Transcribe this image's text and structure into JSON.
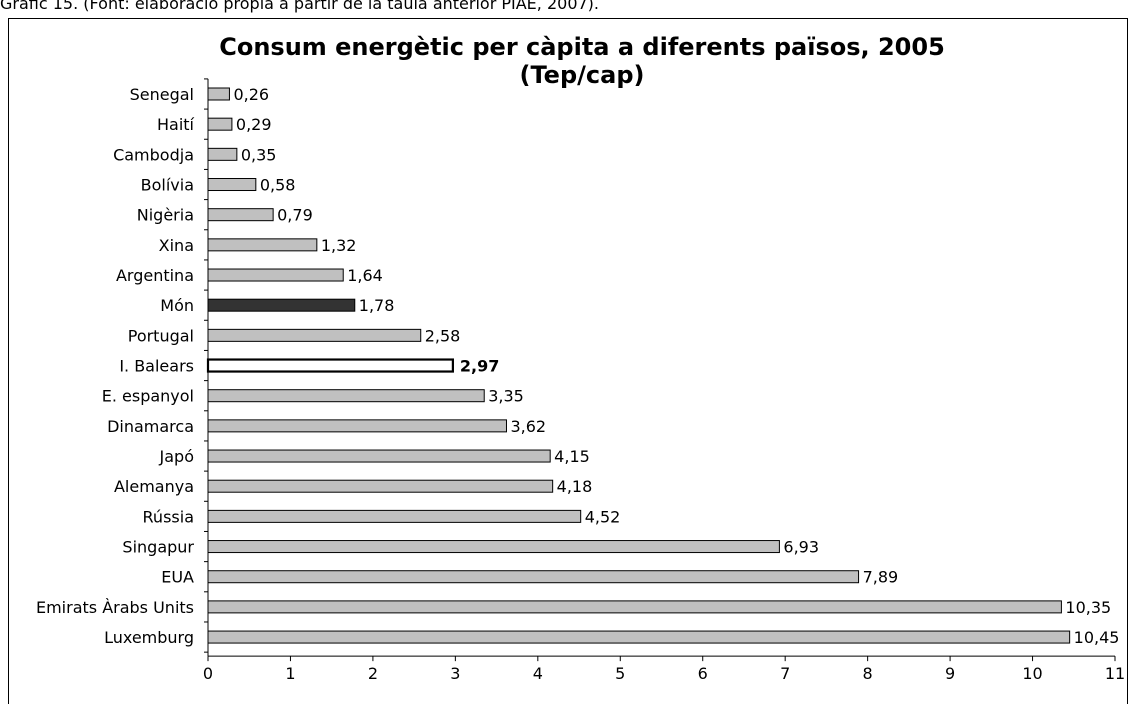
{
  "caption": "Gràfic 15. (Font: elaboració pròpia a partir de la taula anterior PIAE, 2007).",
  "chart_data": {
    "type": "bar",
    "orientation": "horizontal",
    "title": "Consum energètic per càpita a diferents països, 2005",
    "subtitle": "(Tep/cap)",
    "xlabel": "",
    "ylabel": "",
    "xlim": [
      0,
      11
    ],
    "x_ticks": [
      "0",
      "1",
      "2",
      "3",
      "4",
      "5",
      "6",
      "7",
      "8",
      "9",
      "10",
      "11"
    ],
    "grid": false,
    "legend": "none",
    "categories": [
      "Senegal",
      "Haití",
      "Cambodja",
      "Bolívia",
      "Nigèria",
      "Xina",
      "Argentina",
      "Món",
      "Portugal",
      "I. Balears",
      "E. espanyol",
      "Dinamarca",
      "Japó",
      "Alemanya",
      "Rússia",
      "Singapur",
      "EUA",
      "Emirats Àrabs Units",
      "Luxemburg"
    ],
    "values": [
      0.26,
      0.29,
      0.35,
      0.58,
      0.79,
      1.32,
      1.64,
      1.78,
      2.58,
      2.97,
      3.35,
      3.62,
      4.15,
      4.18,
      4.52,
      6.93,
      7.89,
      10.35,
      10.45
    ],
    "value_labels": [
      "0,26",
      "0,29",
      "0,35",
      "0,58",
      "0,79",
      "1,32",
      "1,64",
      "1,78",
      "2,58",
      "2,97",
      "3,35",
      "3,62",
      "4,15",
      "4,18",
      "4,52",
      "6,93",
      "7,89",
      "10,35",
      "10,45"
    ],
    "colors": {
      "default": "#c0c0c0",
      "highlight_world": "#333333",
      "highlight_balears": "#ffffff",
      "stroke": "#000000"
    },
    "highlights": {
      "Món": "dark",
      "I. Balears": "outlined-bold"
    }
  }
}
